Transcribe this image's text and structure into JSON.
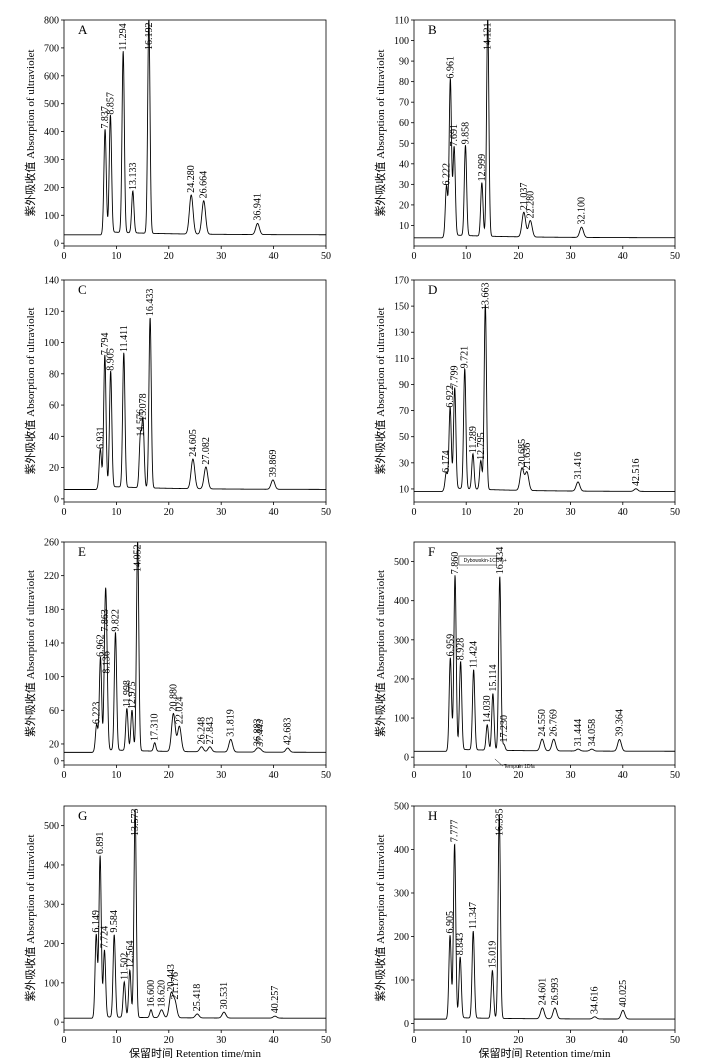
{
  "colors": {
    "line": "#000000",
    "axis": "#000000",
    "background": "#ffffff"
  },
  "chart_data": [
    {
      "panel": "A",
      "type": "line",
      "ylabel": "紫外吸收值 Absorption of ultraviolet",
      "xlabel": "",
      "xlim": [
        0,
        50
      ],
      "ylim": [
        -10,
        800
      ],
      "xticks": [
        0,
        10,
        20,
        30,
        40,
        50
      ],
      "yticks": [
        0,
        100,
        200,
        300,
        400,
        500,
        600,
        700,
        800
      ],
      "baseline": 30,
      "peaks": [
        {
          "x": 7.837,
          "y": 400,
          "label": "7.837"
        },
        {
          "x": 8.857,
          "y": 450,
          "label": "8.857"
        },
        {
          "x": 11.294,
          "y": 680,
          "label": "11.294"
        },
        {
          "x": 13.133,
          "y": 180,
          "label": "13.133"
        },
        {
          "x": 16.192,
          "y": 800,
          "label": "16.192"
        },
        {
          "x": 24.28,
          "y": 170,
          "label": "24.280"
        },
        {
          "x": 26.664,
          "y": 150,
          "label": "26.664"
        },
        {
          "x": 36.941,
          "y": 70,
          "label": "36.941"
        }
      ],
      "annotations": []
    },
    {
      "panel": "B",
      "type": "line",
      "ylabel": "紫外吸收值 Absorption of ultraviolet",
      "xlabel": "",
      "xlim": [
        0,
        50
      ],
      "ylim": [
        0,
        110
      ],
      "xticks": [
        0,
        10,
        20,
        30,
        40,
        50
      ],
      "yticks": [
        10,
        20,
        30,
        40,
        50,
        60,
        70,
        80,
        90,
        100,
        110
      ],
      "baseline": 4,
      "peaks": [
        {
          "x": 6.222,
          "y": 28,
          "label": "6.222"
        },
        {
          "x": 6.961,
          "y": 80,
          "label": "6.961"
        },
        {
          "x": 7.691,
          "y": 47,
          "label": "7.691"
        },
        {
          "x": 9.858,
          "y": 48,
          "label": "9.858"
        },
        {
          "x": 12.999,
          "y": 30,
          "label": "12.999"
        },
        {
          "x": 14.121,
          "y": 110,
          "label": "14.121"
        },
        {
          "x": 21.037,
          "y": 16,
          "label": "21.037"
        },
        {
          "x": 22.28,
          "y": 12,
          "label": "22.280"
        },
        {
          "x": 32.1,
          "y": 9,
          "label": "32.100"
        }
      ],
      "annotations": []
    },
    {
      "panel": "C",
      "type": "line",
      "ylabel": "紫外吸收值 Absorption of ultraviolet",
      "xlabel": "",
      "xlim": [
        0,
        50
      ],
      "ylim": [
        -2,
        140
      ],
      "xticks": [
        0,
        10,
        20,
        30,
        40,
        50
      ],
      "yticks": [
        0,
        20,
        40,
        60,
        80,
        100,
        120,
        140
      ],
      "baseline": 6,
      "peaks": [
        {
          "x": 6.931,
          "y": 30,
          "label": "6.931"
        },
        {
          "x": 7.794,
          "y": 90,
          "label": "7.794"
        },
        {
          "x": 8.905,
          "y": 80,
          "label": "8.905"
        },
        {
          "x": 11.411,
          "y": 92,
          "label": "11.411"
        },
        {
          "x": 14.576,
          "y": 38,
          "label": "14.576"
        },
        {
          "x": 15.078,
          "y": 48,
          "label": "15.078"
        },
        {
          "x": 16.433,
          "y": 115,
          "label": "16.433"
        },
        {
          "x": 24.605,
          "y": 25,
          "label": "24.605"
        },
        {
          "x": 27.082,
          "y": 20,
          "label": "27.082"
        },
        {
          "x": 39.869,
          "y": 12,
          "label": "39.869"
        }
      ],
      "annotations": []
    },
    {
      "panel": "D",
      "type": "line",
      "ylabel": "紫外吸收值 Absorption of ultraviolet",
      "xlabel": "",
      "xlim": [
        0,
        50
      ],
      "ylim": [
        0,
        170
      ],
      "xticks": [
        0,
        10,
        20,
        30,
        40,
        50
      ],
      "yticks": [
        10,
        30,
        50,
        70,
        90,
        110,
        130,
        150,
        170
      ],
      "baseline": 8,
      "peaks": [
        {
          "x": 6.174,
          "y": 20,
          "label": "6.174"
        },
        {
          "x": 6.922,
          "y": 70,
          "label": "6.922"
        },
        {
          "x": 7.799,
          "y": 85,
          "label": "7.799"
        },
        {
          "x": 9.721,
          "y": 100,
          "label": "9.721"
        },
        {
          "x": 11.289,
          "y": 35,
          "label": "11.289"
        },
        {
          "x": 12.795,
          "y": 30,
          "label": "12.795"
        },
        {
          "x": 13.663,
          "y": 150,
          "label": "13.663"
        },
        {
          "x": 20.685,
          "y": 25,
          "label": "20.685"
        },
        {
          "x": 21.636,
          "y": 22,
          "label": "21.636"
        },
        {
          "x": 31.416,
          "y": 15,
          "label": "31.416"
        },
        {
          "x": 42.516,
          "y": 10,
          "label": "42.516"
        }
      ],
      "annotations": []
    },
    {
      "panel": "E",
      "type": "line",
      "ylabel": "紫外吸收值 Absorption of ultraviolet",
      "xlabel": "",
      "xlim": [
        0,
        50
      ],
      "ylim": [
        -5,
        260
      ],
      "xticks": [
        0,
        10,
        20,
        30,
        40,
        50
      ],
      "yticks": [
        0,
        20,
        60,
        100,
        140,
        180,
        220,
        260
      ],
      "baseline": 10,
      "peaks": [
        {
          "x": 6.223,
          "y": 40,
          "label": "6.223"
        },
        {
          "x": 6.962,
          "y": 120,
          "label": "6.962"
        },
        {
          "x": 7.863,
          "y": 150,
          "label": "7.863"
        },
        {
          "x": 8.136,
          "y": 100,
          "label": "8.136"
        },
        {
          "x": 9.822,
          "y": 150,
          "label": "9.822"
        },
        {
          "x": 11.998,
          "y": 60,
          "label": "11.998"
        },
        {
          "x": 12.975,
          "y": 58,
          "label": "12.975"
        },
        {
          "x": 14.052,
          "y": 260,
          "label": "14.052"
        },
        {
          "x": 17.31,
          "y": 20,
          "label": "17.310"
        },
        {
          "x": 20.88,
          "y": 55,
          "label": "20.880"
        },
        {
          "x": 22.024,
          "y": 40,
          "label": "22.024"
        },
        {
          "x": 26.248,
          "y": 16,
          "label": "26.248"
        },
        {
          "x": 27.843,
          "y": 16,
          "label": "27.843"
        },
        {
          "x": 31.819,
          "y": 25,
          "label": "31.819"
        },
        {
          "x": 36.883,
          "y": 14,
          "label": "36.883"
        },
        {
          "x": 37.443,
          "y": 13,
          "label": "37.443"
        },
        {
          "x": 42.683,
          "y": 15,
          "label": "42.683"
        }
      ],
      "annotations": []
    },
    {
      "panel": "F",
      "type": "line",
      "ylabel": "紫外吸收值 Absorption of ultraviolet",
      "xlabel": "",
      "xlim": [
        0,
        50
      ],
      "ylim": [
        -20,
        550
      ],
      "xticks": [
        0,
        10,
        20,
        30,
        40,
        50
      ],
      "yticks": [
        0,
        100,
        200,
        300,
        400,
        500
      ],
      "baseline": 15,
      "peaks": [
        {
          "x": 6.959,
          "y": 250,
          "label": "6.959"
        },
        {
          "x": 7.86,
          "y": 460,
          "label": "7.860"
        },
        {
          "x": 8.928,
          "y": 240,
          "label": "8.928"
        },
        {
          "x": 11.424,
          "y": 220,
          "label": "11.424"
        },
        {
          "x": 14.03,
          "y": 80,
          "label": "14.030"
        },
        {
          "x": 15.114,
          "y": 160,
          "label": "15.114"
        },
        {
          "x": 16.434,
          "y": 460,
          "label": "16.434"
        },
        {
          "x": 17.23,
          "y": 30,
          "label": "17.230"
        },
        {
          "x": 24.55,
          "y": 45,
          "label": "24.550"
        },
        {
          "x": 26.769,
          "y": 45,
          "label": "26.769"
        },
        {
          "x": 31.444,
          "y": 20,
          "label": "31.444"
        },
        {
          "x": 34.058,
          "y": 20,
          "label": "34.058"
        },
        {
          "x": 39.364,
          "y": 45,
          "label": "39.364"
        }
      ],
      "annotations": [
        "Dybowskin-1CC%+",
        "Tempoin 1Dfa"
      ]
    },
    {
      "panel": "G",
      "type": "line",
      "ylabel": "紫外吸收值 Absorption of ultraviolet",
      "xlabel": "保留时间 Retention time/min",
      "xlim": [
        0,
        50
      ],
      "ylim": [
        -20,
        550
      ],
      "xticks": [
        0,
        10,
        20,
        30,
        40,
        50
      ],
      "yticks": [
        0,
        100,
        200,
        300,
        400,
        500
      ],
      "baseline": 10,
      "peaks": [
        {
          "x": 6.149,
          "y": 220,
          "label": "6.149"
        },
        {
          "x": 6.891,
          "y": 420,
          "label": "6.891"
        },
        {
          "x": 7.724,
          "y": 180,
          "label": "7.724"
        },
        {
          "x": 9.584,
          "y": 220,
          "label": "9.584"
        },
        {
          "x": 11.502,
          "y": 100,
          "label": "11.502"
        },
        {
          "x": 12.564,
          "y": 130,
          "label": "12.564"
        },
        {
          "x": 13.573,
          "y": 540,
          "label": "13.573"
        },
        {
          "x": 16.6,
          "y": 30,
          "label": "16.600"
        },
        {
          "x": 18.62,
          "y": 30,
          "label": "18.620"
        },
        {
          "x": 20.443,
          "y": 70,
          "label": "20.443"
        },
        {
          "x": 21.176,
          "y": 50,
          "label": "21.176"
        },
        {
          "x": 25.418,
          "y": 20,
          "label": "25.418"
        },
        {
          "x": 30.531,
          "y": 25,
          "label": "30.531"
        },
        {
          "x": 40.257,
          "y": 15,
          "label": "40.257"
        }
      ],
      "annotations": []
    },
    {
      "panel": "H",
      "type": "line",
      "ylabel": "紫外吸收值 Absorption of ultraviolet",
      "xlabel": "保留时间 Retention time/min",
      "xlim": [
        0,
        50
      ],
      "ylim": [
        -15,
        500
      ],
      "xticks": [
        0,
        10,
        20,
        30,
        40,
        50
      ],
      "yticks": [
        0,
        100,
        200,
        300,
        400,
        500
      ],
      "baseline": 10,
      "peaks": [
        {
          "x": 6.905,
          "y": 200,
          "label": "6.905"
        },
        {
          "x": 7.777,
          "y": 410,
          "label": "7.777"
        },
        {
          "x": 8.843,
          "y": 150,
          "label": "8.843"
        },
        {
          "x": 11.347,
          "y": 210,
          "label": "11.347"
        },
        {
          "x": 15.019,
          "y": 120,
          "label": "15.019"
        },
        {
          "x": 16.335,
          "y": 480,
          "label": "16.335"
        },
        {
          "x": 24.601,
          "y": 35,
          "label": "24.601"
        },
        {
          "x": 26.993,
          "y": 35,
          "label": "26.993"
        },
        {
          "x": 34.616,
          "y": 15,
          "label": "34.616"
        },
        {
          "x": 40.025,
          "y": 30,
          "label": "40.025"
        }
      ],
      "annotations": []
    }
  ]
}
